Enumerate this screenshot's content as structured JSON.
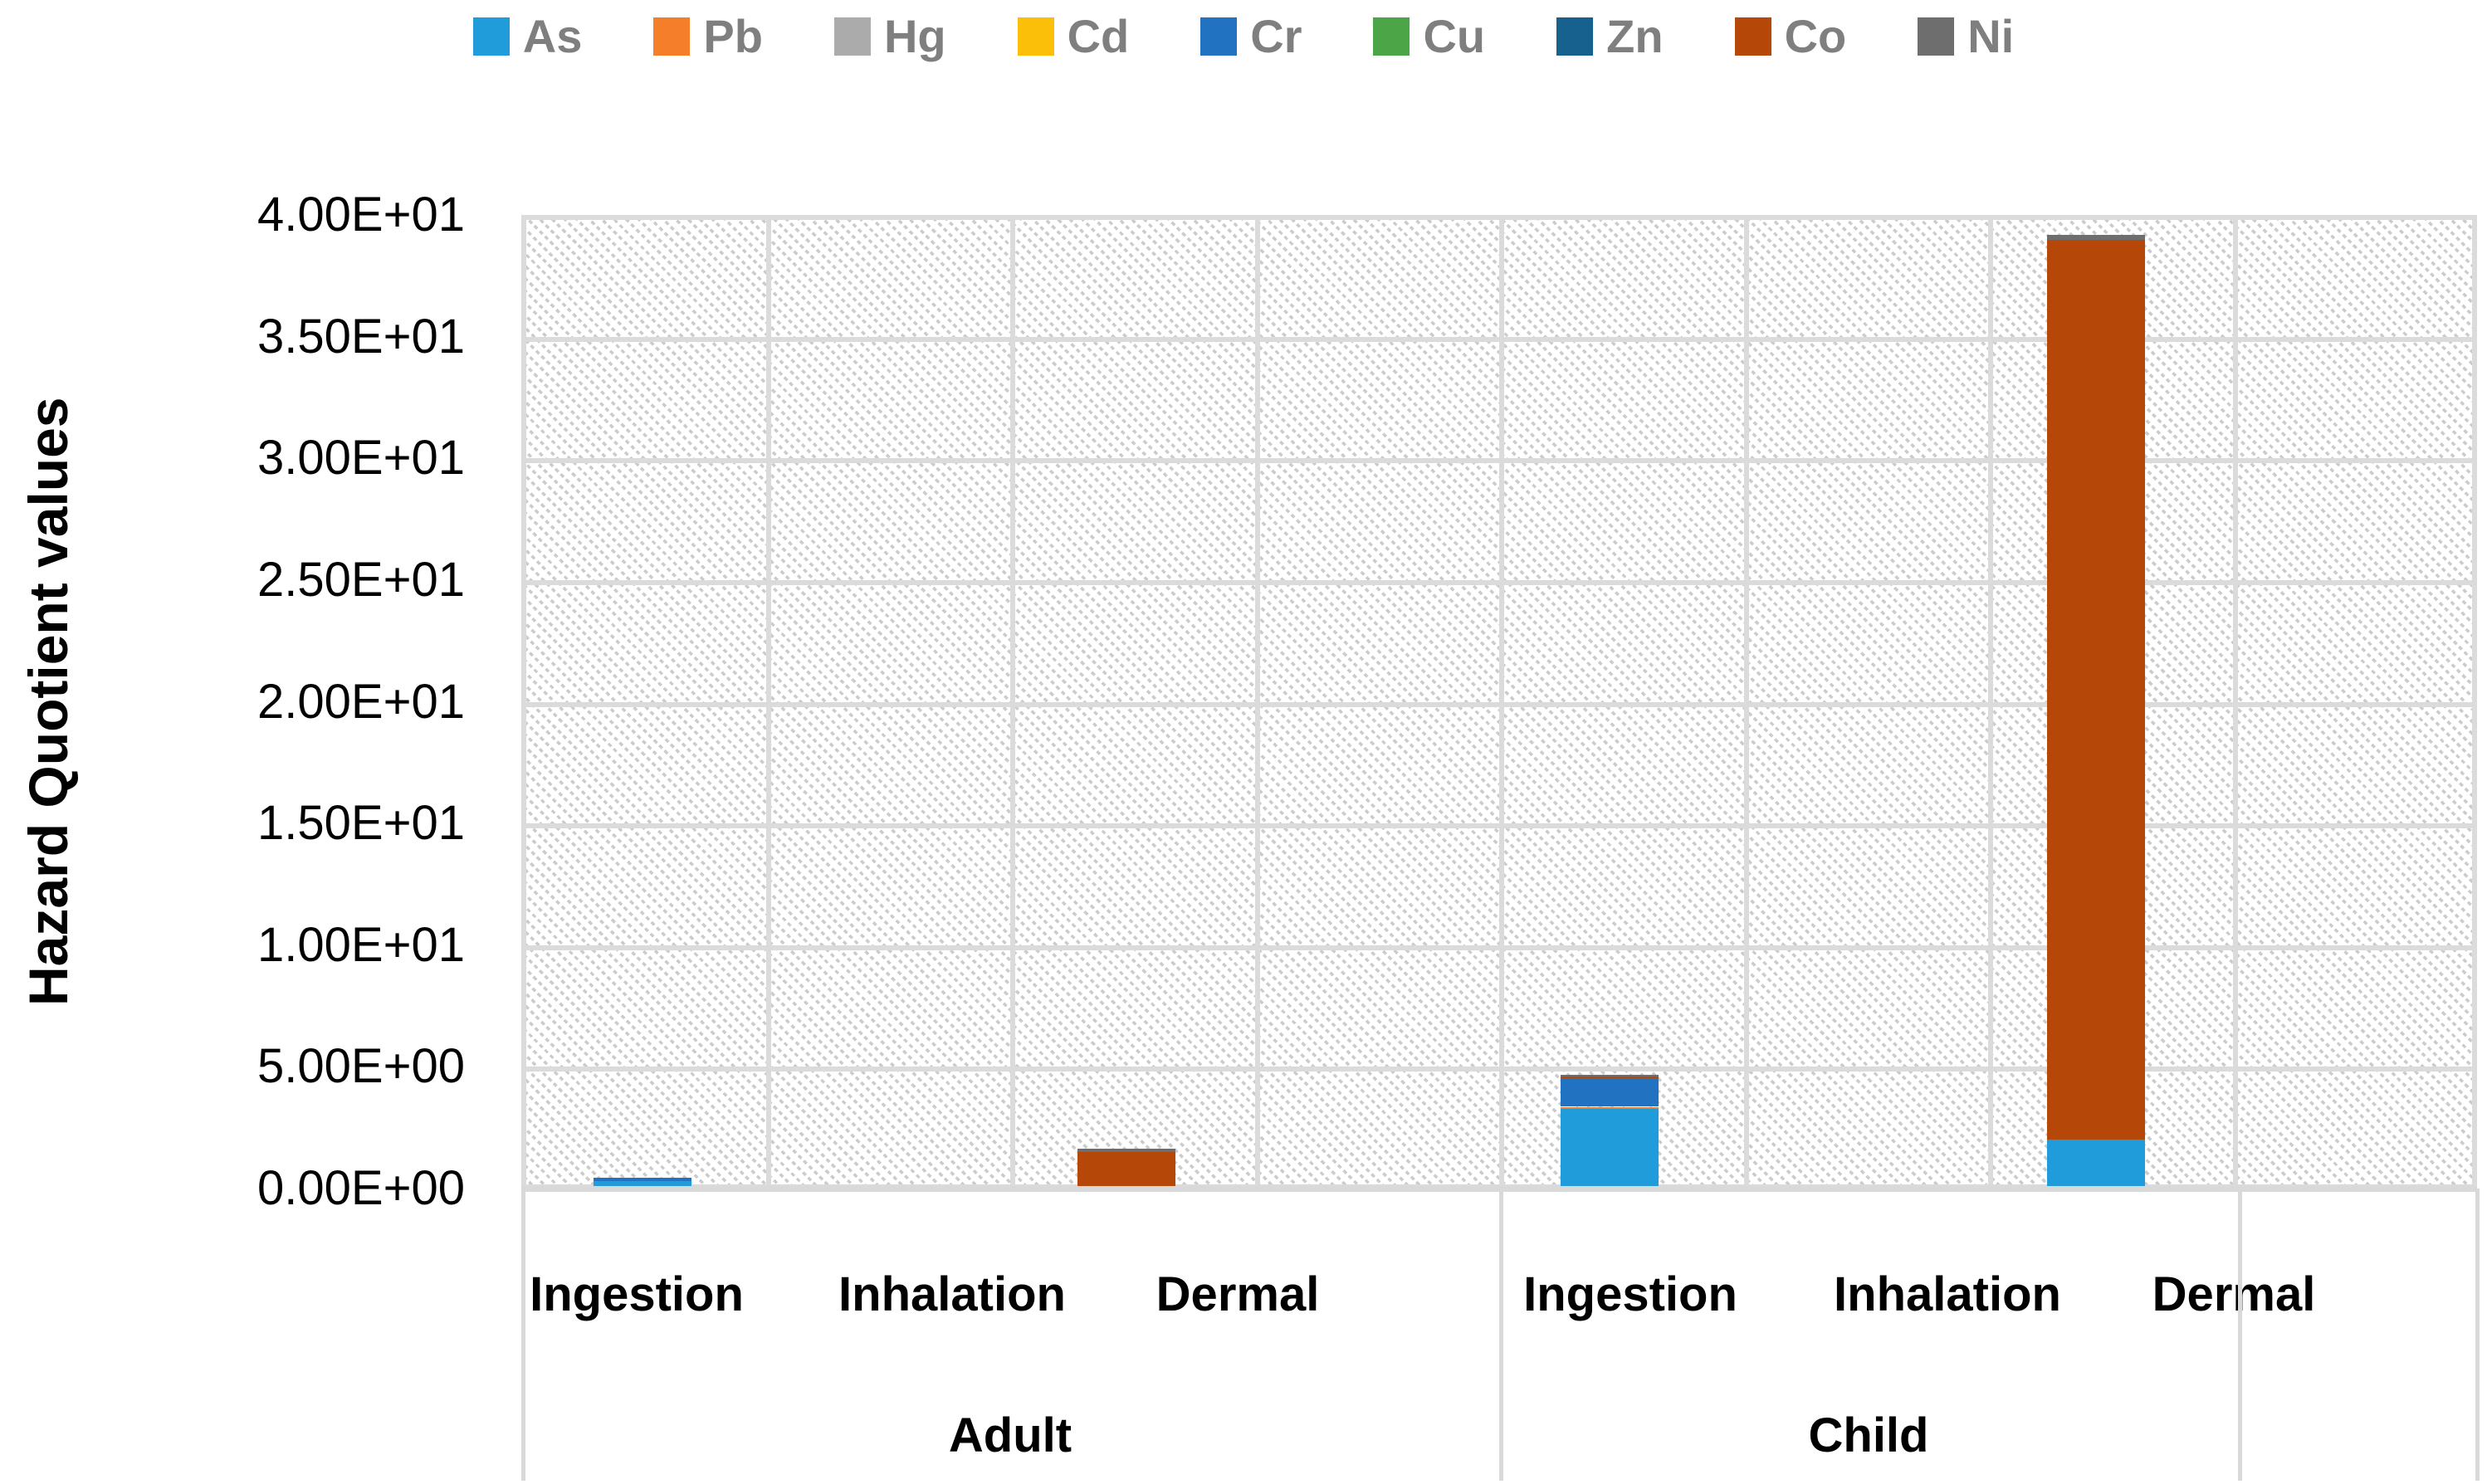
{
  "chart_data": {
    "type": "bar",
    "stacked": true,
    "title": "",
    "xlabel": "",
    "ylabel": "Hazard Quotient values",
    "ylim": [
      0,
      40
    ],
    "ytick_step": 5,
    "ytick_labels": [
      "0.00E+00",
      "5.00E+00",
      "1.00E+01",
      "1.50E+01",
      "2.00E+01",
      "2.50E+01",
      "3.00E+01",
      "3.50E+01",
      "4.00E+01"
    ],
    "grid": true,
    "plot_background": "light-diagonal-hatch",
    "legend_position": "top",
    "groups": [
      {
        "label": "Adult",
        "categories": [
          "Ingestion",
          "Inhalation",
          "Dermal"
        ]
      },
      {
        "label": "Child",
        "categories": [
          "Ingestion",
          "Inhalation",
          "Dermal"
        ]
      }
    ],
    "categories": [
      "Adult Ingestion",
      "Adult Inhalation",
      "Adult Dermal",
      "Child Ingestion",
      "Child Inhalation",
      "Child Dermal"
    ],
    "series": [
      {
        "name": "As",
        "color": "#1f9cd9",
        "values": [
          0.3,
          0,
          0,
          3.28,
          0,
          2.01
        ]
      },
      {
        "name": "Pb",
        "color": "#f57e2b",
        "values": [
          0,
          0,
          0,
          0.08,
          0,
          0
        ]
      },
      {
        "name": "Hg",
        "color": "#ababab",
        "values": [
          0,
          0,
          0,
          0,
          0,
          0
        ]
      },
      {
        "name": "Cd",
        "color": "#fbbf0a",
        "values": [
          0,
          0,
          0,
          0,
          0,
          0
        ]
      },
      {
        "name": "Cr",
        "color": "#2172c0",
        "values": [
          0.15,
          0,
          0,
          1.16,
          0,
          0
        ]
      },
      {
        "name": "Cu",
        "color": "#4ca647",
        "values": [
          0,
          0,
          0,
          0,
          0,
          0
        ]
      },
      {
        "name": "Zn",
        "color": "#16618e",
        "values": [
          0,
          0,
          0,
          0,
          0,
          0
        ]
      },
      {
        "name": "Co",
        "color": "#b54708",
        "values": [
          0,
          0,
          1.5,
          0.08,
          0,
          36.95
        ]
      },
      {
        "name": "Ni",
        "color": "#6e6e6e",
        "values": [
          0,
          0,
          0.12,
          0.08,
          0,
          0.2
        ]
      }
    ]
  }
}
